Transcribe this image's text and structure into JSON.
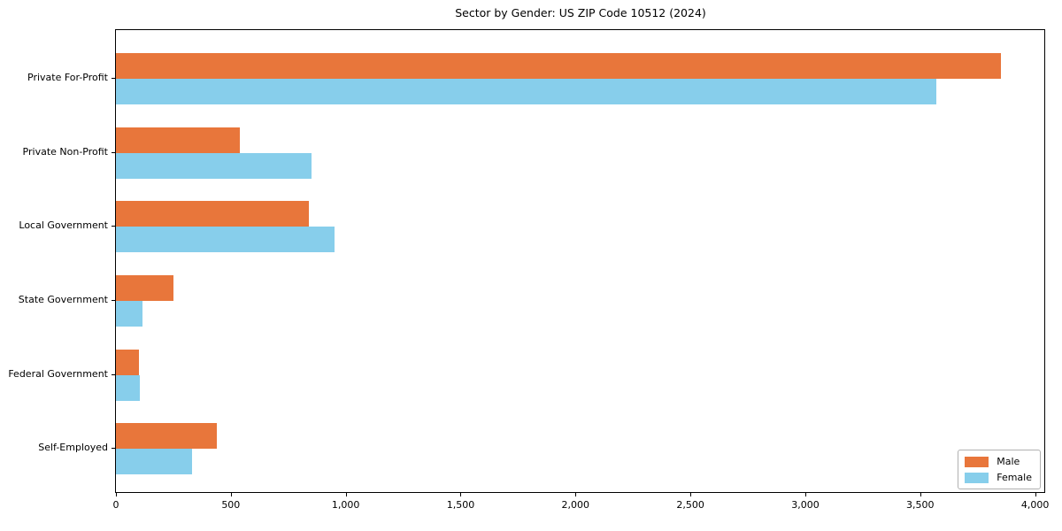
{
  "chart_data": {
    "type": "bar",
    "orientation": "horizontal",
    "title": "Sector by Gender: US ZIP Code 10512 (2024)",
    "categories": [
      "Private For-Profit",
      "Private Non-Profit",
      "Local Government",
      "State Government",
      "Federal Government",
      "Self-Employed"
    ],
    "series": [
      {
        "name": "Male",
        "color": "#e8763b",
        "values": [
          3850,
          540,
          840,
          250,
          100,
          440
        ]
      },
      {
        "name": "Female",
        "color": "#87ceeb",
        "values": [
          3570,
          850,
          950,
          115,
          105,
          330
        ]
      }
    ],
    "xlabel": "",
    "ylabel": "",
    "x_ticks": [
      0,
      500,
      1000,
      1500,
      2000,
      2500,
      3000,
      3500,
      4000
    ],
    "x_tick_labels": [
      "0",
      "500",
      "1,000",
      "1,500",
      "2,000",
      "2,500",
      "3,000",
      "3,500",
      "4,000"
    ],
    "xlim": [
      0,
      4040
    ],
    "grid": false,
    "legend": {
      "position": "lower right"
    },
    "axis_color": "#000000"
  }
}
